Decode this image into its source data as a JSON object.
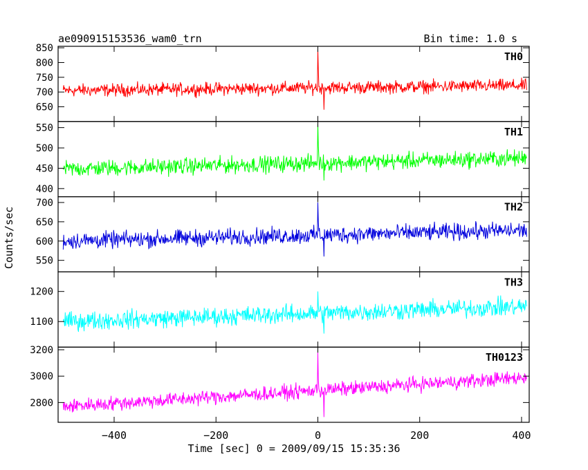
{
  "chart_data": {
    "type": "line",
    "title": "ae090915153536_wam0_trn",
    "bin_time_label": "Bin time: 1.0 s",
    "xlabel": "Time [sec] 0 = 2009/09/15 15:35:36",
    "ylabel": "Counts/sec",
    "xlim": [
      -510,
      415
    ],
    "x_range": [
      -500,
      410
    ],
    "x_ticks": [
      -400,
      -200,
      0,
      200,
      400
    ],
    "grid": false,
    "panels": [
      {
        "name": "TH0",
        "color": "#ff0000",
        "ylim": [
          600,
          855
        ],
        "y_ticks": [
          650,
          700,
          750,
          800,
          850
        ],
        "base_start": 705,
        "base_end": 722,
        "noise_amp": 32,
        "spike_level": 845,
        "dip_level": 640
      },
      {
        "name": "TH1",
        "color": "#00ff00",
        "ylim": [
          380,
          565
        ],
        "y_ticks": [
          400,
          450,
          500,
          550
        ],
        "base_start": 448,
        "base_end": 475,
        "noise_amp": 30,
        "spike_level": 560,
        "dip_level": 420
      },
      {
        "name": "TH2",
        "color": "#0000dd",
        "ylim": [
          520,
          715
        ],
        "y_ticks": [
          550,
          600,
          650,
          700
        ],
        "base_start": 600,
        "base_end": 628,
        "noise_amp": 32,
        "spike_level": 700,
        "dip_level": 560
      },
      {
        "name": "TH3",
        "color": "#00ffff",
        "ylim": [
          1015,
          1265
        ],
        "y_ticks": [
          1100,
          1200
        ],
        "base_start": 1100,
        "base_end": 1150,
        "noise_amp": 45,
        "spike_level": 1200,
        "dip_level": 1060
      },
      {
        "name": "TH0123",
        "color": "#ff00ff",
        "ylim": [
          2650,
          3220
        ],
        "y_ticks": [
          2800,
          3000,
          3200
        ],
        "base_start": 2770,
        "base_end": 2990,
        "noise_amp": 80,
        "spike_level": 3180,
        "dip_level": 2690
      }
    ]
  }
}
